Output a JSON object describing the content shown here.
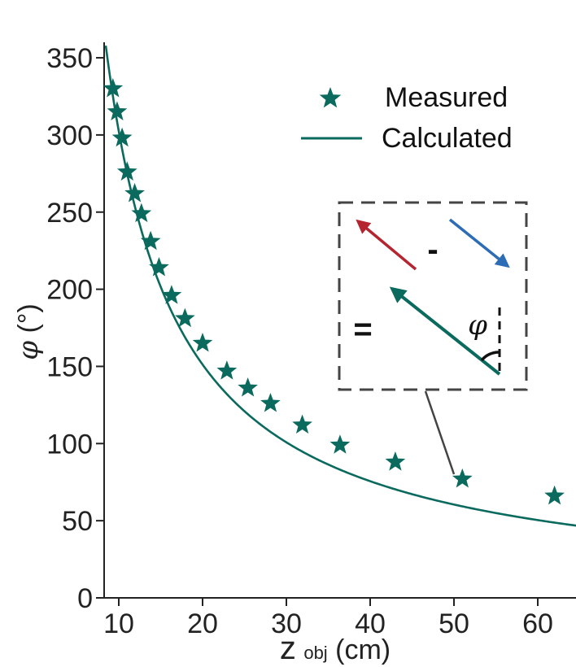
{
  "colors": {
    "series": "#0b6a5e",
    "red_arrow": "#b5252f",
    "blue_arrow": "#2d6db5",
    "axis": "#222222",
    "inset_border": "#444444"
  },
  "chart_data": {
    "type": "scatter",
    "xlabel_main": "z",
    "xlabel_sub": "obj",
    "xlabel_unit": "(cm)",
    "ylabel_symbol": "φ",
    "ylabel_unit": "(°)",
    "xlim": [
      8.5,
      65
    ],
    "ylim": [
      0,
      360
    ],
    "xticks": [
      10,
      20,
      30,
      40,
      50,
      60
    ],
    "yticks": [
      0,
      50,
      100,
      150,
      200,
      250,
      300,
      350
    ],
    "legend": {
      "position": "top-right",
      "measured": "Measured",
      "calculated": "Calculated"
    },
    "series": [
      {
        "name": "Measured",
        "kind": "scatter",
        "marker": "star",
        "x": [
          9.3,
          9.8,
          10.4,
          11.0,
          11.9,
          12.7,
          13.8,
          14.8,
          16.3,
          17.9,
          20.0,
          22.9,
          25.4,
          28.1,
          31.9,
          36.4,
          43.0,
          51.0,
          62.0
        ],
        "y": [
          330,
          315,
          298,
          276,
          262,
          249,
          231,
          214,
          196,
          181,
          165,
          147,
          136,
          126,
          112,
          99,
          88,
          77,
          66
        ]
      },
      {
        "name": "Calculated",
        "kind": "line",
        "model": "phi = 3024 / z",
        "k": 3024,
        "x_range": [
          8.45,
          65
        ]
      }
    ],
    "inset": {
      "minus": "-",
      "equals": "=",
      "angle_symbol": "φ"
    }
  }
}
